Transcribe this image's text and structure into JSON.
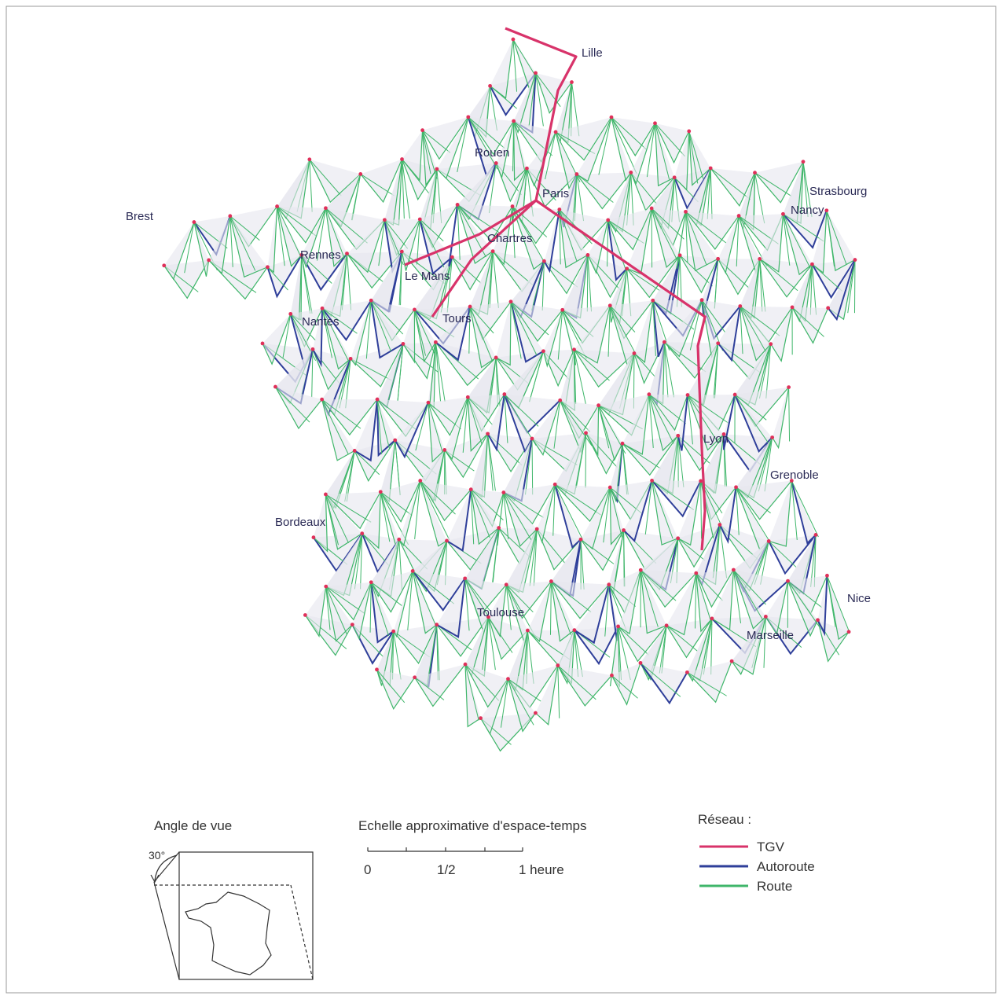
{
  "map": {
    "cities": [
      "Lille",
      "Rouen",
      "Paris",
      "Strasbourg",
      "Brest",
      "Nancy",
      "Chartres",
      "Rennes",
      "Le Mans",
      "Nantes",
      "Tours",
      "Lyon",
      "Grenoble",
      "Bordeaux",
      "Toulouse",
      "Nice",
      "Marseille"
    ]
  },
  "legend": {
    "title": "Réseau :",
    "items": [
      {
        "label": "TGV",
        "color": "#d8336a"
      },
      {
        "label": "Autoroute",
        "color": "#2f3f9a"
      },
      {
        "label": "Route",
        "color": "#3fb66a"
      }
    ]
  },
  "scale": {
    "title": "Echelle approximative d'espace-temps",
    "labels": [
      "0",
      "1/2",
      "1 heure"
    ]
  },
  "view_angle": {
    "title": "Angle de vue",
    "angle": "30°"
  }
}
